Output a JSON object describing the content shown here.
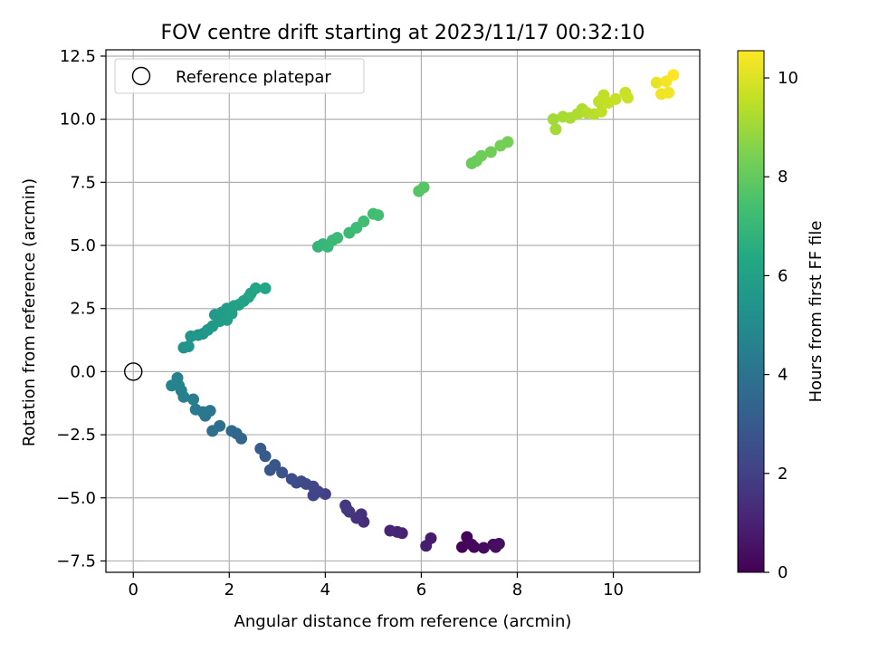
{
  "chart_data": {
    "type": "scatter",
    "title": "FOV centre drift starting at 2023/11/17 00:32:10",
    "xlabel": "Angular distance from reference (arcmin)",
    "ylabel": "Rotation from reference (arcmin)",
    "xlim": [
      -0.57,
      11.8
    ],
    "ylim": [
      -7.95,
      12.75
    ],
    "x_ticks": [
      0,
      2,
      4,
      6,
      8,
      10
    ],
    "x_tick_labels": [
      "0",
      "2",
      "4",
      "6",
      "8",
      "10"
    ],
    "y_ticks": [
      -7.5,
      -5.0,
      -2.5,
      0.0,
      2.5,
      5.0,
      7.5,
      10.0,
      12.5
    ],
    "y_tick_labels": [
      "−7.5",
      "−5.0",
      "−2.5",
      "0.0",
      "2.5",
      "5.0",
      "7.5",
      "10.0",
      "12.5"
    ],
    "grid": true,
    "legend": {
      "placement": "top-left",
      "entries": [
        {
          "label": "Reference platepar",
          "marker": "open-circle"
        }
      ]
    },
    "reference_point": {
      "x": 0.0,
      "y": 0.0
    },
    "colorbar": {
      "label": "Hours from first FF file",
      "colormap": "viridis",
      "range": [
        0,
        10.55
      ],
      "ticks": [
        0,
        2,
        4,
        6,
        8,
        10
      ],
      "tick_labels": [
        "0",
        "2",
        "4",
        "6",
        "8",
        "10"
      ]
    },
    "points": [
      {
        "x": 6.85,
        "y": -6.95,
        "h": 0.1
      },
      {
        "x": 6.95,
        "y": -6.55,
        "h": 0.15
      },
      {
        "x": 7.05,
        "y": -6.85,
        "h": 0.2
      },
      {
        "x": 7.1,
        "y": -6.95,
        "h": 0.25
      },
      {
        "x": 7.3,
        "y": -6.98,
        "h": 0.3
      },
      {
        "x": 7.5,
        "y": -6.85,
        "h": 0.35
      },
      {
        "x": 7.55,
        "y": -6.95,
        "h": 0.4
      },
      {
        "x": 7.62,
        "y": -6.82,
        "h": 0.45
      },
      {
        "x": 6.2,
        "y": -6.6,
        "h": 0.8
      },
      {
        "x": 6.1,
        "y": -6.9,
        "h": 0.85
      },
      {
        "x": 5.6,
        "y": -6.4,
        "h": 1.0
      },
      {
        "x": 5.5,
        "y": -6.35,
        "h": 1.05
      },
      {
        "x": 5.35,
        "y": -6.3,
        "h": 1.1
      },
      {
        "x": 4.8,
        "y": -5.95,
        "h": 1.4
      },
      {
        "x": 4.75,
        "y": -5.65,
        "h": 1.45
      },
      {
        "x": 4.65,
        "y": -5.8,
        "h": 1.5
      },
      {
        "x": 4.5,
        "y": -5.55,
        "h": 1.6
      },
      {
        "x": 4.42,
        "y": -5.3,
        "h": 1.65
      },
      {
        "x": 4.45,
        "y": -5.45,
        "h": 1.7
      },
      {
        "x": 4.0,
        "y": -4.85,
        "h": 2.0
      },
      {
        "x": 3.85,
        "y": -4.75,
        "h": 2.1
      },
      {
        "x": 3.75,
        "y": -4.9,
        "h": 2.15
      },
      {
        "x": 3.75,
        "y": -4.55,
        "h": 2.2
      },
      {
        "x": 3.6,
        "y": -4.45,
        "h": 2.3
      },
      {
        "x": 3.5,
        "y": -4.35,
        "h": 2.35
      },
      {
        "x": 3.4,
        "y": -4.4,
        "h": 2.4
      },
      {
        "x": 3.3,
        "y": -4.25,
        "h": 2.45
      },
      {
        "x": 3.1,
        "y": -4.0,
        "h": 2.7
      },
      {
        "x": 2.95,
        "y": -3.7,
        "h": 2.8
      },
      {
        "x": 2.85,
        "y": -3.9,
        "h": 2.85
      },
      {
        "x": 2.75,
        "y": -3.35,
        "h": 2.95
      },
      {
        "x": 2.65,
        "y": -3.05,
        "h": 3.05
      },
      {
        "x": 2.25,
        "y": -2.65,
        "h": 3.4
      },
      {
        "x": 2.15,
        "y": -2.45,
        "h": 3.5
      },
      {
        "x": 2.05,
        "y": -2.35,
        "h": 3.6
      },
      {
        "x": 1.8,
        "y": -2.15,
        "h": 3.8
      },
      {
        "x": 1.65,
        "y": -2.35,
        "h": 3.85
      },
      {
        "x": 1.6,
        "y": -1.55,
        "h": 4.1
      },
      {
        "x": 1.5,
        "y": -1.75,
        "h": 4.15
      },
      {
        "x": 1.45,
        "y": -1.6,
        "h": 4.2
      },
      {
        "x": 1.3,
        "y": -1.5,
        "h": 4.3
      },
      {
        "x": 1.25,
        "y": -1.1,
        "h": 4.45
      },
      {
        "x": 1.05,
        "y": -1.0,
        "h": 4.55
      },
      {
        "x": 1.0,
        "y": -0.75,
        "h": 4.6
      },
      {
        "x": 0.95,
        "y": -0.55,
        "h": 4.65
      },
      {
        "x": 0.92,
        "y": -0.25,
        "h": 4.7
      },
      {
        "x": 0.8,
        "y": -0.55,
        "h": 4.75
      },
      {
        "x": 1.05,
        "y": 0.95,
        "h": 5.35
      },
      {
        "x": 1.15,
        "y": 1.0,
        "h": 5.4
      },
      {
        "x": 1.2,
        "y": 1.4,
        "h": 5.45
      },
      {
        "x": 1.35,
        "y": 1.45,
        "h": 5.5
      },
      {
        "x": 1.45,
        "y": 1.5,
        "h": 5.55
      },
      {
        "x": 1.55,
        "y": 1.65,
        "h": 5.6
      },
      {
        "x": 1.65,
        "y": 1.8,
        "h": 5.65
      },
      {
        "x": 1.7,
        "y": 2.25,
        "h": 5.7
      },
      {
        "x": 1.8,
        "y": 2.0,
        "h": 5.75
      },
      {
        "x": 1.85,
        "y": 2.35,
        "h": 5.8
      },
      {
        "x": 1.95,
        "y": 2.5,
        "h": 5.85
      },
      {
        "x": 1.95,
        "y": 2.05,
        "h": 5.85
      },
      {
        "x": 2.05,
        "y": 2.3,
        "h": 5.9
      },
      {
        "x": 2.1,
        "y": 2.6,
        "h": 5.95
      },
      {
        "x": 2.2,
        "y": 2.65,
        "h": 6.0
      },
      {
        "x": 2.3,
        "y": 2.8,
        "h": 6.05
      },
      {
        "x": 2.4,
        "y": 2.95,
        "h": 6.1
      },
      {
        "x": 2.45,
        "y": 3.1,
        "h": 6.15
      },
      {
        "x": 2.55,
        "y": 3.3,
        "h": 6.2
      },
      {
        "x": 2.75,
        "y": 3.3,
        "h": 6.25
      },
      {
        "x": 3.85,
        "y": 4.95,
        "h": 6.9
      },
      {
        "x": 3.95,
        "y": 5.05,
        "h": 6.95
      },
      {
        "x": 4.05,
        "y": 4.95,
        "h": 7.0
      },
      {
        "x": 4.15,
        "y": 5.2,
        "h": 7.05
      },
      {
        "x": 4.25,
        "y": 5.3,
        "h": 7.1
      },
      {
        "x": 4.5,
        "y": 5.5,
        "h": 7.15
      },
      {
        "x": 4.65,
        "y": 5.7,
        "h": 7.2
      },
      {
        "x": 4.8,
        "y": 5.95,
        "h": 7.25
      },
      {
        "x": 5.0,
        "y": 6.25,
        "h": 7.3
      },
      {
        "x": 5.1,
        "y": 6.2,
        "h": 7.35
      },
      {
        "x": 5.95,
        "y": 7.15,
        "h": 7.7
      },
      {
        "x": 6.05,
        "y": 7.3,
        "h": 7.75
      },
      {
        "x": 7.05,
        "y": 8.25,
        "h": 8.1
      },
      {
        "x": 7.15,
        "y": 8.35,
        "h": 8.15
      },
      {
        "x": 7.25,
        "y": 8.55,
        "h": 8.2
      },
      {
        "x": 7.45,
        "y": 8.7,
        "h": 8.25
      },
      {
        "x": 7.65,
        "y": 8.95,
        "h": 8.3
      },
      {
        "x": 7.8,
        "y": 9.1,
        "h": 8.35
      },
      {
        "x": 8.75,
        "y": 10.0,
        "h": 9.05
      },
      {
        "x": 8.8,
        "y": 9.6,
        "h": 9.1
      },
      {
        "x": 8.95,
        "y": 10.1,
        "h": 9.15
      },
      {
        "x": 9.1,
        "y": 10.05,
        "h": 9.2
      },
      {
        "x": 9.25,
        "y": 10.2,
        "h": 9.25
      },
      {
        "x": 9.35,
        "y": 10.4,
        "h": 9.3
      },
      {
        "x": 9.45,
        "y": 10.25,
        "h": 9.35
      },
      {
        "x": 9.6,
        "y": 10.2,
        "h": 9.4
      },
      {
        "x": 9.7,
        "y": 10.7,
        "h": 9.5
      },
      {
        "x": 9.8,
        "y": 10.95,
        "h": 9.55
      },
      {
        "x": 9.75,
        "y": 10.3,
        "h": 9.5
      },
      {
        "x": 9.9,
        "y": 10.65,
        "h": 9.6
      },
      {
        "x": 10.05,
        "y": 10.8,
        "h": 9.65
      },
      {
        "x": 10.25,
        "y": 11.05,
        "h": 9.7
      },
      {
        "x": 10.3,
        "y": 10.85,
        "h": 9.75
      },
      {
        "x": 10.9,
        "y": 11.45,
        "h": 10.2
      },
      {
        "x": 11.0,
        "y": 11.0,
        "h": 10.3
      },
      {
        "x": 11.15,
        "y": 11.05,
        "h": 10.35
      },
      {
        "x": 11.1,
        "y": 11.5,
        "h": 10.4
      },
      {
        "x": 11.25,
        "y": 11.75,
        "h": 10.55
      }
    ]
  }
}
